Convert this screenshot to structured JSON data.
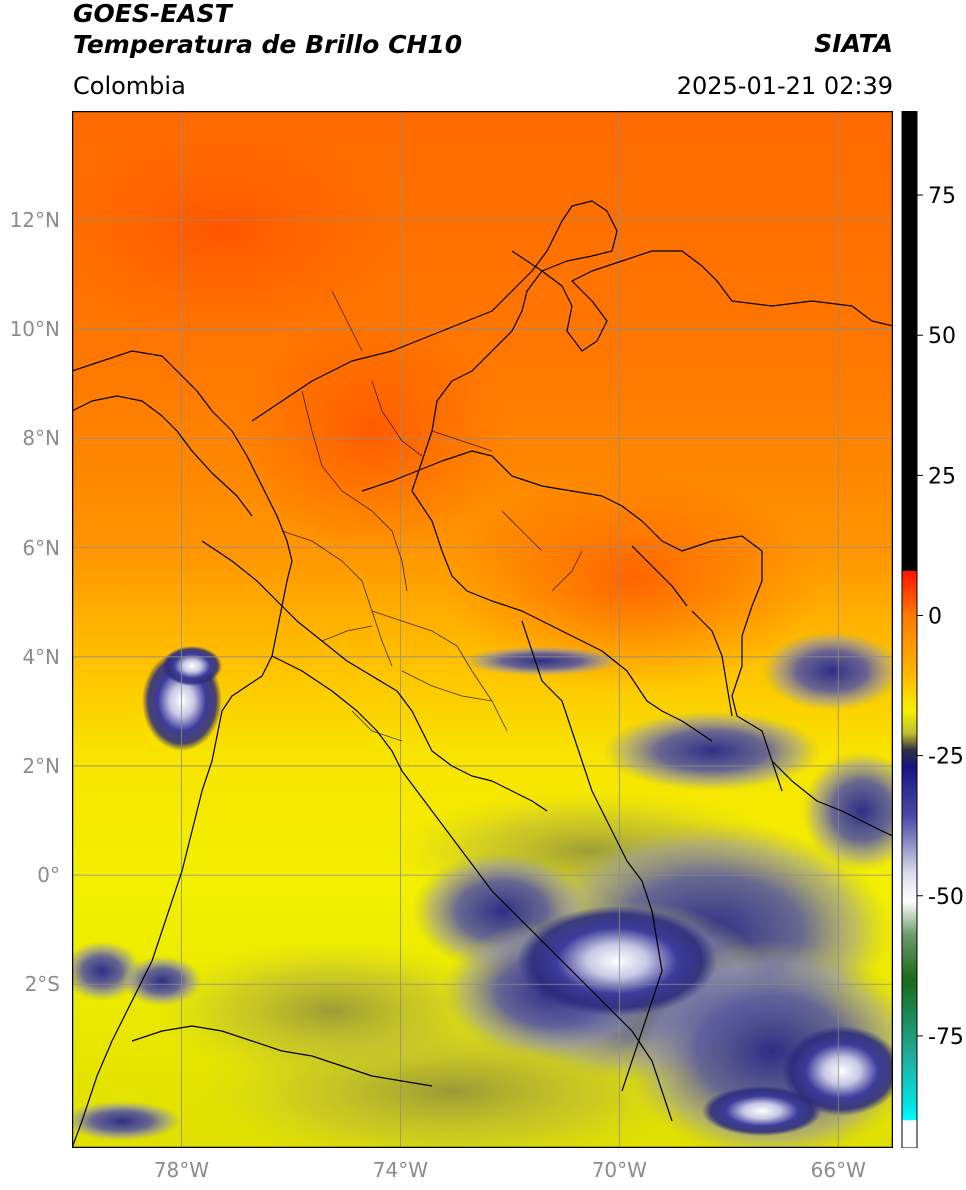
{
  "header": {
    "satellite": "GOES-EAST",
    "product": "Temperatura de Brillo CH10",
    "region": "Colombia",
    "source": "SIATA",
    "datetime": "2025-01-21 02:39"
  },
  "map": {
    "lon_range": [
      -80,
      -65
    ],
    "lat_range": [
      -5,
      14
    ],
    "lat_ticks": [
      {
        "value": 12,
        "label": "12°N"
      },
      {
        "value": 10,
        "label": "10°N"
      },
      {
        "value": 8,
        "label": "8°N"
      },
      {
        "value": 6,
        "label": "6°N"
      },
      {
        "value": 4,
        "label": "4°N"
      },
      {
        "value": 2,
        "label": "2°N"
      },
      {
        "value": 0,
        "label": "0°"
      },
      {
        "value": -2,
        "label": "2°S"
      }
    ],
    "lon_ticks": [
      {
        "value": -78,
        "label": "78°W"
      },
      {
        "value": -74,
        "label": "74°W"
      },
      {
        "value": -70,
        "label": "70°W"
      },
      {
        "value": -66,
        "label": "66°W"
      }
    ],
    "grid": true
  },
  "colorbar": {
    "range": [
      -95,
      90
    ],
    "ticks": [
      {
        "value": 75,
        "label": "75"
      },
      {
        "value": 50,
        "label": "50"
      },
      {
        "value": 25,
        "label": "25"
      },
      {
        "value": 0,
        "label": "0"
      },
      {
        "value": -25,
        "label": "-25"
      },
      {
        "value": -50,
        "label": "-50"
      },
      {
        "value": -75,
        "label": "-75"
      }
    ],
    "stops": [
      {
        "value": 90,
        "color": "#000000"
      },
      {
        "value": 8,
        "color": "#000000"
      },
      {
        "value": 7.9,
        "color": "#ff1400"
      },
      {
        "value": 0,
        "color": "#ff7a00"
      },
      {
        "value": -10,
        "color": "#ffb400"
      },
      {
        "value": -17,
        "color": "#f5f000"
      },
      {
        "value": -21,
        "color": "#bfbf30"
      },
      {
        "value": -24,
        "color": "#303040"
      },
      {
        "value": -27,
        "color": "#151582"
      },
      {
        "value": -36,
        "color": "#4c4ca6"
      },
      {
        "value": -46,
        "color": "#dcdcec"
      },
      {
        "value": -51,
        "color": "#ffffff"
      },
      {
        "value": -57,
        "color": "#6a9a6a"
      },
      {
        "value": -65,
        "color": "#1a6a1a"
      },
      {
        "value": -79,
        "color": "#20b0a0"
      },
      {
        "value": -88,
        "color": "#00e8e8"
      },
      {
        "value": -90,
        "color": "#00ffff"
      },
      {
        "value": -90.1,
        "color": "#ffffff"
      },
      {
        "value": -95,
        "color": "#ffffff"
      }
    ]
  }
}
